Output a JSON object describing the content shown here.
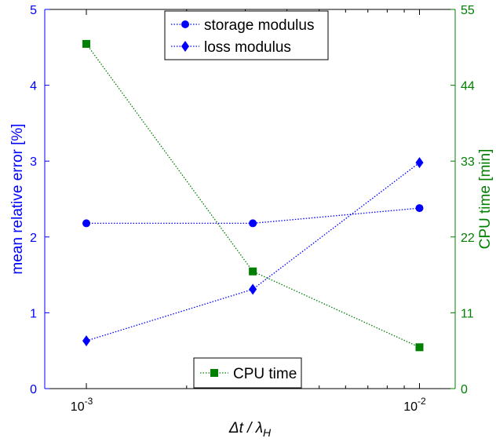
{
  "chart_data": {
    "type": "line",
    "title": "",
    "xlabel": {
      "main": "Δt / λ",
      "sub": "H"
    },
    "xscale": "log",
    "xlim": [
      0.00075,
      0.0128
    ],
    "xticks": [
      {
        "value": 0.001,
        "base": "10",
        "exp": "-3"
      },
      {
        "value": 0.01,
        "base": "10",
        "exp": "-2"
      }
    ],
    "ylabel_left": "mean relative error [%]",
    "ylim_left": [
      0,
      5
    ],
    "yticks_left": [
      "0",
      "1",
      "2",
      "3",
      "4",
      "5"
    ],
    "ylabel_right": "CPU time [min]",
    "ylim_right": [
      0,
      55
    ],
    "yticks_right": [
      "0",
      "11",
      "22",
      "33",
      "44",
      "55"
    ],
    "grid": false,
    "x": [
      0.001,
      0.00316,
      0.01
    ],
    "series": [
      {
        "name": "storage modulus",
        "axis": "left",
        "marker": "circle",
        "color": "#0000ff",
        "values": [
          2.18,
          2.18,
          2.38
        ]
      },
      {
        "name": "loss modulus",
        "axis": "left",
        "marker": "diamond",
        "color": "#0000ff",
        "values": [
          0.63,
          1.31,
          2.98
        ]
      },
      {
        "name": "CPU time",
        "axis": "right",
        "marker": "square",
        "color": "#008000",
        "values": [
          50,
          17,
          6
        ]
      }
    ],
    "legends": [
      {
        "placement": "top-center",
        "entries": [
          "storage modulus",
          "loss modulus"
        ]
      },
      {
        "placement": "bottom-center",
        "entries": [
          "CPU time"
        ]
      }
    ],
    "colors": {
      "left_axis": "#0000ff",
      "right_axis": "#008000",
      "frame": "#000000"
    }
  }
}
